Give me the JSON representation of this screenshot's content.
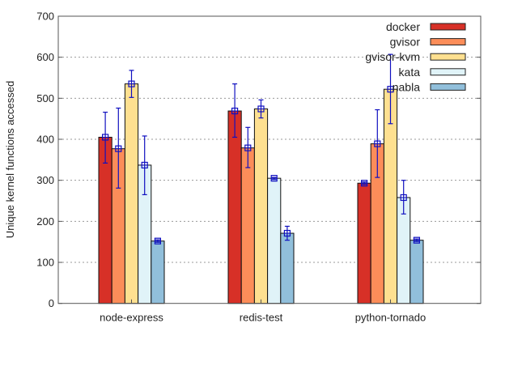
{
  "chart_data": {
    "type": "bar",
    "title": "",
    "xlabel": "",
    "ylabel": "Unique kernel functions accessed",
    "ylim": [
      0,
      700
    ],
    "yticks": [
      0,
      100,
      200,
      300,
      400,
      500,
      600,
      700
    ],
    "grid": "horizontal dotted",
    "legend_position": "top-right",
    "categories": [
      "node-express",
      "redis-test",
      "python-tornado"
    ],
    "series": [
      {
        "name": "docker",
        "color": "#d73027",
        "values": [
          405,
          469,
          293
        ],
        "err_low": [
          342,
          405,
          290
        ],
        "err_high": [
          466,
          535,
          296
        ]
      },
      {
        "name": "gvisor",
        "color": "#fc8d59",
        "values": [
          377,
          379,
          389
        ],
        "err_low": [
          281,
          331,
          307
        ],
        "err_high": [
          476,
          429,
          472
        ]
      },
      {
        "name": "gvisor-kvm",
        "color": "#fee090",
        "values": [
          535,
          474,
          522
        ],
        "err_low": [
          502,
          452,
          438
        ],
        "err_high": [
          568,
          496,
          607
        ]
      },
      {
        "name": "kata",
        "color": "#e0f3f8",
        "values": [
          337,
          305,
          258
        ],
        "err_low": [
          265,
          302,
          218
        ],
        "err_high": [
          408,
          307,
          300
        ]
      },
      {
        "name": "nabla",
        "color": "#91bfdb",
        "values": [
          152,
          171,
          154
        ],
        "err_low": [
          149,
          154,
          151
        ],
        "err_high": [
          155,
          188,
          157
        ]
      }
    ],
    "error_bar_color": "#1010c0"
  }
}
